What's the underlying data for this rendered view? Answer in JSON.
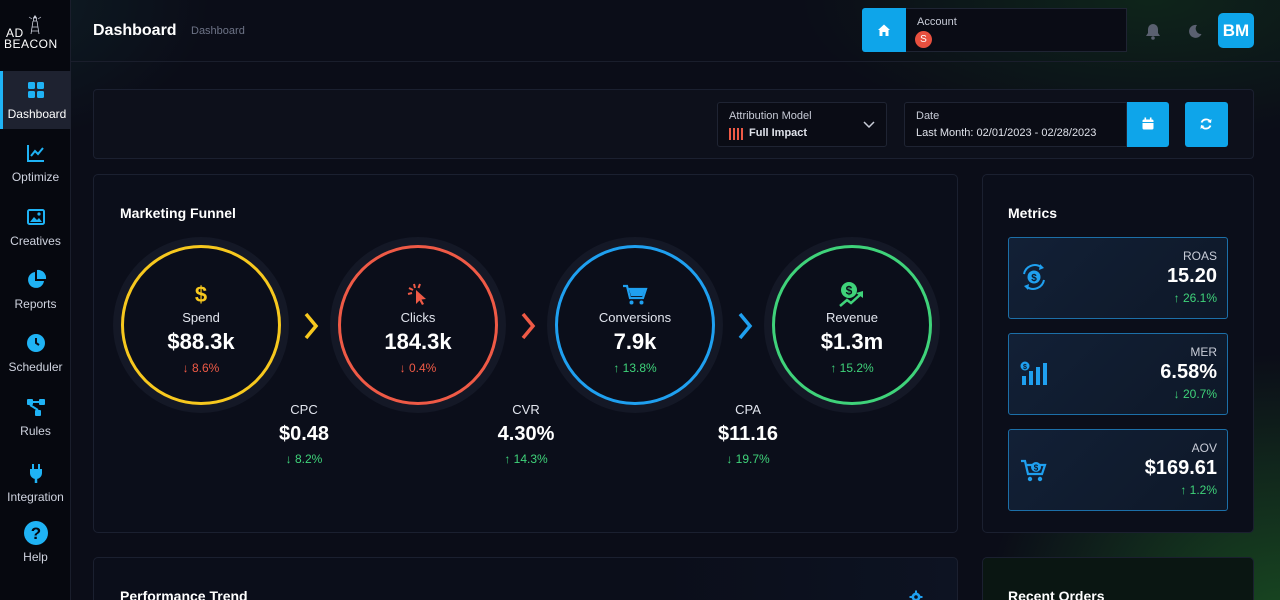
{
  "sidebar": {
    "logo": {
      "line1": "AD",
      "line2": "BEACON"
    },
    "items": [
      {
        "label": "Dashboard",
        "icon": "grid-icon",
        "active": true
      },
      {
        "label": "Optimize",
        "icon": "line-chart-icon"
      },
      {
        "label": "Creatives",
        "icon": "images-icon"
      },
      {
        "label": "Reports",
        "icon": "pie-chart-icon"
      },
      {
        "label": "Scheduler",
        "icon": "clock-icon"
      },
      {
        "label": "Rules",
        "icon": "nodes-icon"
      },
      {
        "label": "Integration",
        "icon": "plug-icon"
      },
      {
        "label": "Help",
        "icon": "help-icon"
      }
    ]
  },
  "header": {
    "title": "Dashboard",
    "breadcrumb": "Dashboard",
    "account_label": "Account",
    "account_badge": "S",
    "avatar": "BM"
  },
  "filters": {
    "attribution_label": "Attribution Model",
    "attribution_value": "Full Impact",
    "date_label": "Date",
    "date_value": "Last Month: 02/01/2023 - 02/28/2023"
  },
  "funnel": {
    "title": "Marketing Funnel",
    "stages": [
      {
        "name": "Spend",
        "value": "$88.3k",
        "change": "↓ 8.6%",
        "color": "#f7c81e",
        "trend": "red"
      },
      {
        "name": "Clicks",
        "value": "184.3k",
        "change": "↓ 0.4%",
        "color": "#ef5a46",
        "trend": "red"
      },
      {
        "name": "Conversions",
        "value": "7.9k",
        "change": "↑ 13.8%",
        "color": "#1fa0f0",
        "trend": "green"
      },
      {
        "name": "Revenue",
        "value": "$1.3m",
        "change": "↑ 15.2%",
        "color": "#3fd37a",
        "trend": "green"
      }
    ],
    "ratios": [
      {
        "name": "CPC",
        "value": "$0.48",
        "change": "↓ 8.2%"
      },
      {
        "name": "CVR",
        "value": "4.30%",
        "change": "↑ 14.3%"
      },
      {
        "name": "CPA",
        "value": "$11.16",
        "change": "↓ 19.7%"
      }
    ]
  },
  "metrics": {
    "title": "Metrics",
    "cards": [
      {
        "name": "ROAS",
        "value": "15.20",
        "change": "↑ 26.1%"
      },
      {
        "name": "MER",
        "value": "6.58%",
        "change": "↓ 20.7%"
      },
      {
        "name": "AOV",
        "value": "$169.61",
        "change": "↑ 1.2%"
      }
    ]
  },
  "performance": {
    "title": "Performance Trend"
  },
  "orders": {
    "title": "Recent Orders"
  },
  "colors": {
    "accent": "#0ea5ea",
    "up": "#3fd37a",
    "down": "#ef5a46"
  }
}
